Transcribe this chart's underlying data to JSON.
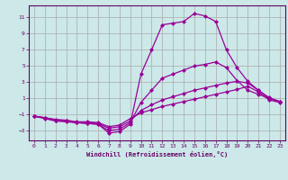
{
  "xlabel": "Windchill (Refroidissement éolien,°C)",
  "ylabel": "",
  "background_color": "#cce8e8",
  "grid_color": "#aaaaaa",
  "line_color": "#990099",
  "xlim": [
    -0.5,
    23.5
  ],
  "ylim": [
    -4.2,
    12.5
  ],
  "yticks": [
    -3,
    -1,
    1,
    3,
    5,
    7,
    9,
    11
  ],
  "xticks": [
    0,
    1,
    2,
    3,
    4,
    5,
    6,
    7,
    8,
    9,
    10,
    11,
    12,
    13,
    14,
    15,
    16,
    17,
    18,
    19,
    20,
    21,
    22,
    23
  ],
  "lines": [
    {
      "x": [
        0,
        1,
        2,
        3,
        4,
        5,
        6,
        7,
        8,
        9,
        10,
        11,
        12,
        13,
        14,
        15,
        16,
        17,
        18,
        19,
        20,
        21,
        22,
        23
      ],
      "y": [
        -1.2,
        -1.5,
        -1.8,
        -1.9,
        -2.0,
        -2.1,
        -2.2,
        -3.3,
        -3.1,
        -2.2,
        4.0,
        7.0,
        10.1,
        10.3,
        10.5,
        11.5,
        11.2,
        10.5,
        7.0,
        4.8,
        3.1,
        2.0,
        1.1,
        0.6
      ],
      "marker": "D",
      "markersize": 2,
      "linewidth": 0.9
    },
    {
      "x": [
        0,
        1,
        2,
        3,
        4,
        5,
        6,
        7,
        8,
        9,
        10,
        11,
        12,
        13,
        14,
        15,
        16,
        17,
        18,
        19,
        20,
        21,
        22,
        23
      ],
      "y": [
        -1.2,
        -1.4,
        -1.7,
        -1.8,
        -2.0,
        -2.1,
        -2.2,
        -3.0,
        -2.8,
        -2.0,
        0.5,
        2.0,
        3.5,
        4.0,
        4.5,
        5.0,
        5.2,
        5.5,
        4.8,
        3.2,
        2.0,
        1.5,
        1.0,
        0.6
      ],
      "marker": "D",
      "markersize": 2,
      "linewidth": 0.9
    },
    {
      "x": [
        0,
        1,
        2,
        3,
        4,
        5,
        6,
        7,
        8,
        9,
        10,
        11,
        12,
        13,
        14,
        15,
        16,
        17,
        18,
        19,
        20,
        21,
        22,
        23
      ],
      "y": [
        -1.2,
        -1.4,
        -1.7,
        -1.8,
        -2.0,
        -2.0,
        -2.1,
        -2.7,
        -2.5,
        -1.8,
        -0.5,
        0.2,
        0.8,
        1.2,
        1.6,
        2.0,
        2.3,
        2.6,
        2.9,
        3.1,
        2.9,
        2.0,
        1.0,
        0.6
      ],
      "marker": "D",
      "markersize": 2,
      "linewidth": 0.9
    },
    {
      "x": [
        0,
        1,
        2,
        3,
        4,
        5,
        6,
        7,
        8,
        9,
        10,
        11,
        12,
        13,
        14,
        15,
        16,
        17,
        18,
        19,
        20,
        21,
        22,
        23
      ],
      "y": [
        -1.2,
        -1.4,
        -1.6,
        -1.7,
        -1.9,
        -1.9,
        -2.0,
        -2.5,
        -2.3,
        -1.5,
        -0.8,
        -0.4,
        0.0,
        0.3,
        0.6,
        0.9,
        1.2,
        1.5,
        1.8,
        2.1,
        2.5,
        1.8,
        0.8,
        0.5
      ],
      "marker": "D",
      "markersize": 2,
      "linewidth": 0.9
    }
  ]
}
